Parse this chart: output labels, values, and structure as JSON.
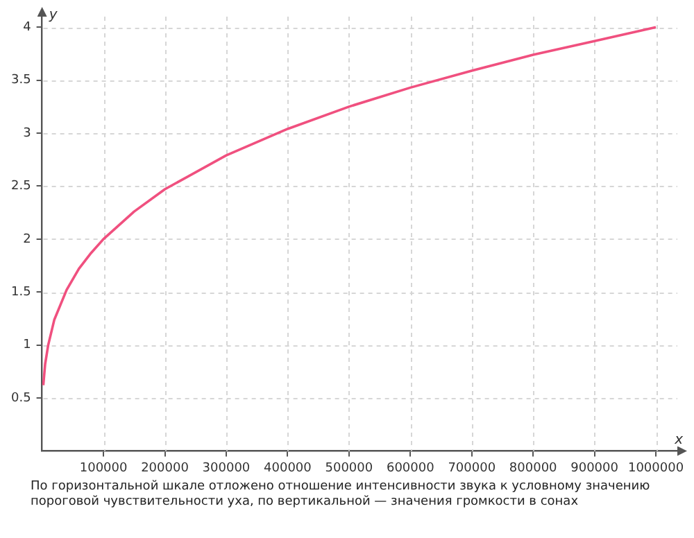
{
  "chart_data": {
    "type": "line",
    "xlabel": "x",
    "ylabel": "y",
    "x": [
      2000,
      5000,
      10000,
      20000,
      40000,
      60000,
      80000,
      100000,
      150000,
      200000,
      300000,
      400000,
      500000,
      600000,
      700000,
      800000,
      900000,
      1000000
    ],
    "series": [
      {
        "color": "#f0507f",
        "values": [
          0.62,
          0.82,
          1.0,
          1.24,
          1.52,
          1.72,
          1.87,
          2.0,
          2.26,
          2.47,
          2.79,
          3.04,
          3.25,
          3.43,
          3.59,
          3.74,
          3.87,
          4.0
        ]
      }
    ],
    "xlim": [
      0,
      1035000
    ],
    "ylim": [
      0,
      4.1
    ],
    "xticks": [
      100000,
      200000,
      300000,
      400000,
      500000,
      600000,
      700000,
      800000,
      900000,
      1000000
    ],
    "yticks": [
      0.5,
      1,
      1.5,
      2,
      2.5,
      3,
      3.5,
      4
    ],
    "grid": true,
    "legend": false,
    "marker": "none",
    "line_style": "solid",
    "annotations": [
      "По горизонтальной шкале отложено отношение интенсивности звука к условному значению пороговой чувствительности уха, по вертикальной — значения громкости в сонах"
    ]
  }
}
